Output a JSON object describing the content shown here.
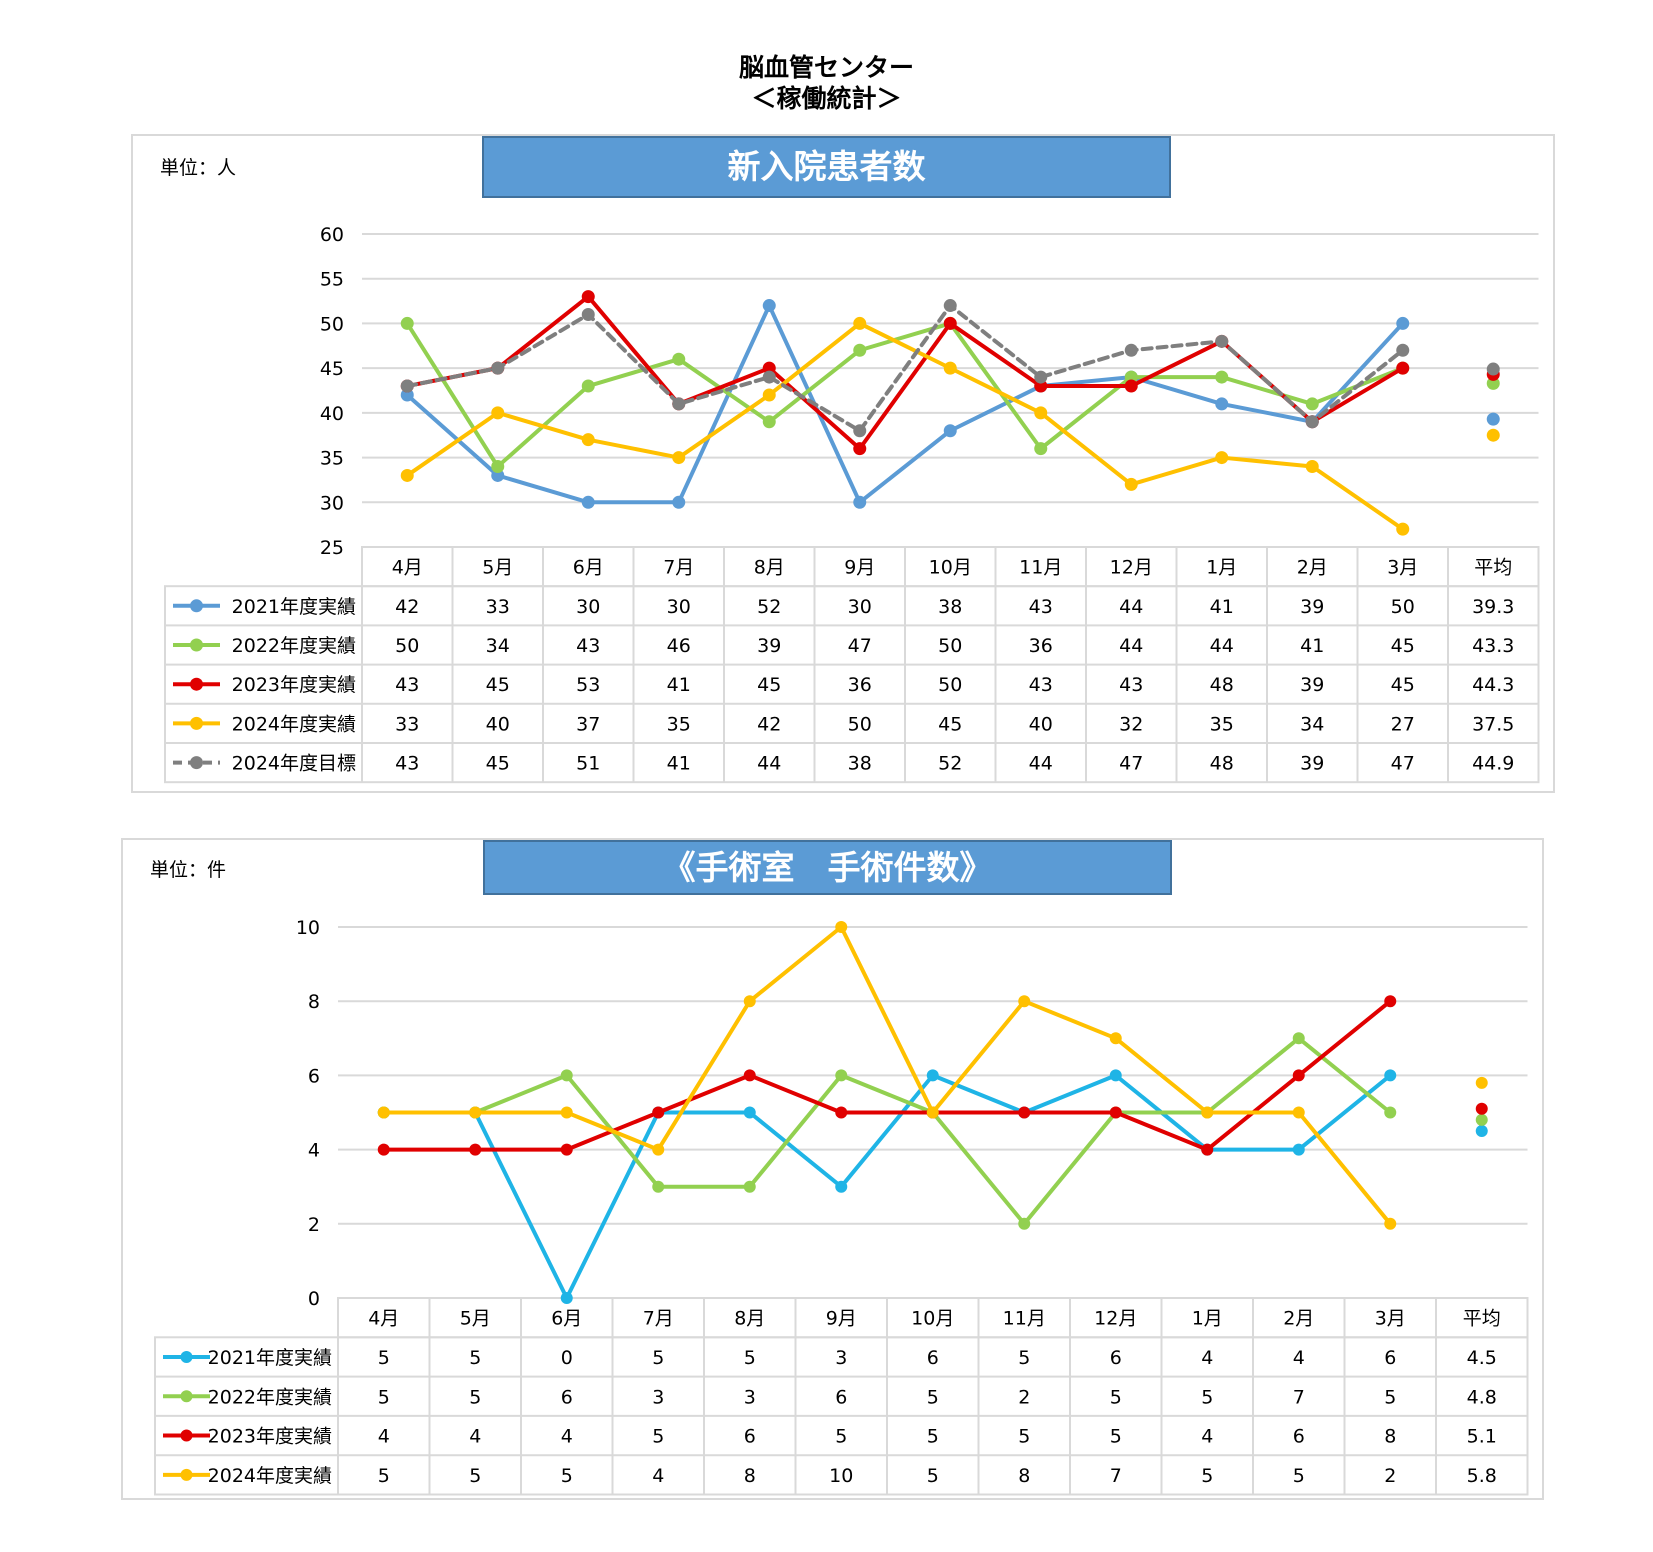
{
  "page": {
    "title_line1": "脳血管センター",
    "title_line2": "＜稼働統計＞"
  },
  "chart_data": [
    {
      "type": "line",
      "title": "新入院患者数",
      "unit_label": "単位：人",
      "categories": [
        "4月",
        "5月",
        "6月",
        "7月",
        "8月",
        "9月",
        "10月",
        "11月",
        "12月",
        "1月",
        "2月",
        "3月"
      ],
      "average_label": "平均",
      "ylim": [
        25,
        60
      ],
      "yticks": [
        25,
        30,
        35,
        40,
        45,
        50,
        55,
        60
      ],
      "grid": true,
      "legend": "table-left",
      "series": [
        {
          "name": "2021年度実績",
          "color": "#5b9bd5",
          "values": [
            42,
            33,
            30,
            30,
            52,
            30,
            38,
            43,
            44,
            41,
            39,
            50
          ],
          "average": "39.3"
        },
        {
          "name": "2022年度実績",
          "color": "#92d050",
          "values": [
            50,
            34,
            43,
            46,
            39,
            47,
            50,
            36,
            44,
            44,
            41,
            45
          ],
          "average": "43.3"
        },
        {
          "name": "2023年度実績",
          "color": "#e00000",
          "values": [
            43,
            45,
            53,
            41,
            45,
            36,
            50,
            43,
            43,
            48,
            39,
            45
          ],
          "average": "44.3"
        },
        {
          "name": "2024年度実績",
          "color": "#ffc000",
          "values": [
            33,
            40,
            37,
            35,
            42,
            50,
            45,
            40,
            32,
            35,
            34,
            27
          ],
          "average": "37.5"
        },
        {
          "name": "2024年度目標",
          "color": "#7f7f7f",
          "dashed": true,
          "values": [
            43,
            45,
            51,
            41,
            44,
            38,
            52,
            44,
            47,
            48,
            39,
            47
          ],
          "average": "44.9"
        }
      ]
    },
    {
      "type": "line",
      "title": "《手術室　手術件数》",
      "unit_label": "単位：件",
      "categories": [
        "4月",
        "5月",
        "6月",
        "7月",
        "8月",
        "9月",
        "10月",
        "11月",
        "12月",
        "1月",
        "2月",
        "3月"
      ],
      "average_label": "平均",
      "ylim": [
        0,
        10
      ],
      "yticks": [
        0,
        2,
        4,
        6,
        8,
        10
      ],
      "grid": true,
      "legend": "table-left",
      "series": [
        {
          "name": "2021年度実績",
          "color": "#1fb4e6",
          "values": [
            5,
            5,
            0,
            5,
            5,
            3,
            6,
            5,
            6,
            4,
            4,
            6
          ],
          "average": "4.5"
        },
        {
          "name": "2022年度実績",
          "color": "#92d050",
          "values": [
            5,
            5,
            6,
            3,
            3,
            6,
            5,
            2,
            5,
            5,
            7,
            5
          ],
          "average": "4.8"
        },
        {
          "name": "2023年度実績",
          "color": "#e00000",
          "values": [
            4,
            4,
            4,
            5,
            6,
            5,
            5,
            5,
            5,
            4,
            6,
            8
          ],
          "average": "5.1"
        },
        {
          "name": "2024年度実績",
          "color": "#ffc000",
          "values": [
            5,
            5,
            5,
            4,
            8,
            10,
            5,
            8,
            7,
            5,
            5,
            2
          ],
          "average": "5.8"
        }
      ]
    }
  ]
}
